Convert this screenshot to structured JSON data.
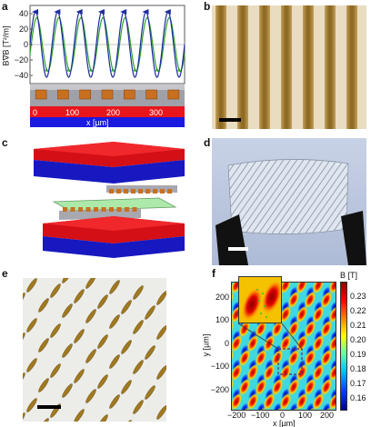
{
  "panels": {
    "a": {
      "label": "a",
      "ylabel": "B∇B [T²/m]",
      "yticks": [
        "40",
        "20",
        "0",
        "−20",
        "−40"
      ],
      "xlabel": "x [µm]",
      "xticks": [
        "0",
        "100",
        "200",
        "300"
      ]
    },
    "b": {
      "label": "b"
    },
    "c": {
      "label": "c"
    },
    "d": {
      "label": "d"
    },
    "e": {
      "label": "e"
    },
    "f": {
      "label": "f",
      "ylabel": "y [µm]",
      "xlabel": "x [µm]",
      "xticks": [
        "−200",
        "−100",
        "0",
        "100",
        "200"
      ],
      "yticks": [
        "200",
        "100",
        "0",
        "−100",
        "−200"
      ],
      "colorbar_title": "B [T]",
      "colorbar_ticks": [
        "0.23",
        "0.22",
        "0.21",
        "0.20",
        "0.19",
        "0.18",
        "0.17",
        "0.16"
      ]
    }
  },
  "colors": {
    "magnet_red": "#e8151c",
    "magnet_blue": "#1a1ae0",
    "stripe_brown": "#9a7424",
    "substrate_gray": "#a0a0a8",
    "curve_blue": "#1d2ca0",
    "curve_green": "#2aa02a"
  }
}
